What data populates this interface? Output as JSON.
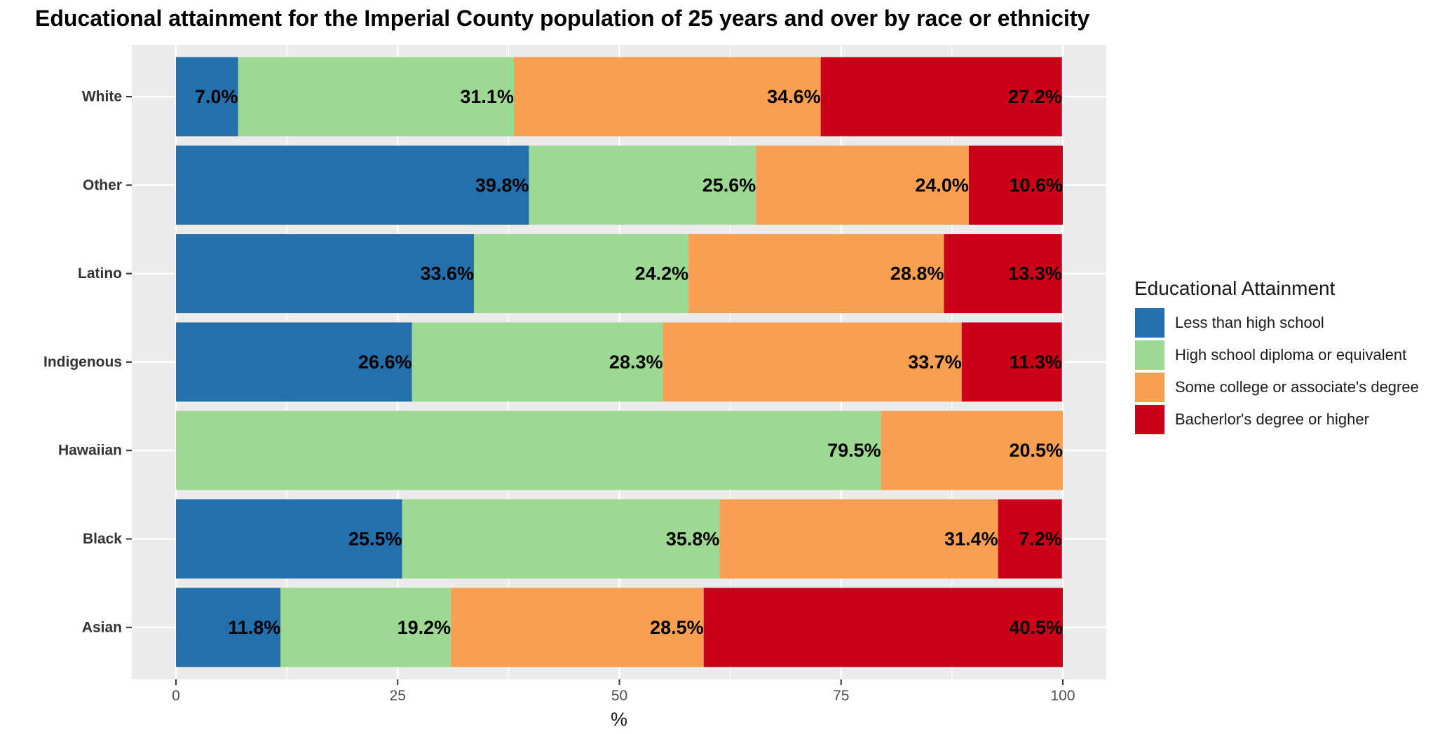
{
  "chart_data": {
    "type": "bar",
    "orientation": "horizontal",
    "stacked": true,
    "title": "Educational attainment for the Imperial County population of 25 years and over by race or ethnicity",
    "xlabel": "%",
    "ylabel": "",
    "xlim": [
      0,
      100
    ],
    "xticks": [
      "0",
      "25",
      "50",
      "75",
      "100"
    ],
    "grid": true,
    "legend_position": "right",
    "legend_title": "Educational Attainment",
    "categories": [
      "White",
      "Other",
      "Latino",
      "Indigenous",
      "Hawaiian",
      "Black",
      "Asian"
    ],
    "series": [
      {
        "name": "Less than high school",
        "color": "#2470AD",
        "values": [
          7.0,
          39.8,
          33.6,
          26.6,
          0,
          25.5,
          11.8
        ]
      },
      {
        "name": "High school diploma or equivalent",
        "color": "#9ED993",
        "values": [
          31.1,
          25.6,
          24.2,
          28.3,
          79.5,
          35.8,
          19.2
        ]
      },
      {
        "name": "Some college or associate's degree",
        "color": "#F99F52",
        "values": [
          34.6,
          24.0,
          28.8,
          33.7,
          20.5,
          31.4,
          28.5
        ]
      },
      {
        "name": "Bacherlor's degree or higher",
        "color": "#CD0019",
        "values": [
          27.2,
          10.6,
          13.3,
          11.3,
          0,
          7.2,
          40.5
        ]
      }
    ],
    "data_labels": [
      [
        "7.0%",
        "31.1%",
        "34.6%",
        "27.2%"
      ],
      [
        "39.8%",
        "25.6%",
        "24.0%",
        "10.6%"
      ],
      [
        "33.6%",
        "24.2%",
        "28.8%",
        "13.3%"
      ],
      [
        "26.6%",
        "28.3%",
        "33.7%",
        "11.3%"
      ],
      [
        "",
        "79.5%",
        "20.5%",
        ""
      ],
      [
        "25.5%",
        "35.8%",
        "31.4%",
        "7.2%"
      ],
      [
        "11.8%",
        "19.2%",
        "28.5%",
        "40.5%"
      ]
    ]
  }
}
